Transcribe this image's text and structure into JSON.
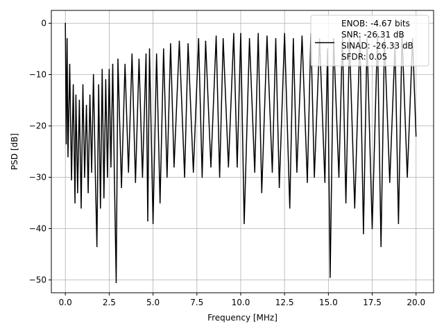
{
  "chart_data": {
    "type": "line",
    "xlabel": "Frequency [MHz]",
    "ylabel": "PSD [dB]",
    "xlim": [
      -0.8,
      21.0
    ],
    "ylim": [
      -52.5,
      2.5
    ],
    "x_ticks": [
      0.0,
      2.5,
      5.0,
      7.5,
      10.0,
      12.5,
      15.0,
      17.5,
      20.0
    ],
    "x_tick_labels": [
      "0.0",
      "2.5",
      "5.0",
      "7.5",
      "10.0",
      "12.5",
      "15.0",
      "17.5",
      "20.0"
    ],
    "y_ticks": [
      0,
      -10,
      -20,
      -30,
      -40,
      -50
    ],
    "y_tick_labels": [
      "0",
      "−10",
      "−20",
      "−30",
      "−40",
      "−50"
    ],
    "grid": true,
    "legend_position": "top-right",
    "series": [
      {
        "name": "ENOB: -4.67 bits\nSNR: -26.31 dB\nSINAD: -26.33 dB\nSFDR: 0.05",
        "color": "#000000",
        "x": [
          0.0,
          0.05,
          0.1,
          0.15,
          0.25,
          0.35,
          0.45,
          0.55,
          0.6,
          0.7,
          0.8,
          0.9,
          1.0,
          1.1,
          1.2,
          1.3,
          1.4,
          1.5,
          1.6,
          1.7,
          1.8,
          1.9,
          2.0,
          2.1,
          2.2,
          2.3,
          2.4,
          2.5,
          2.6,
          2.7,
          2.8,
          2.9,
          3.0,
          3.2,
          3.4,
          3.6,
          3.8,
          4.0,
          4.2,
          4.4,
          4.6,
          4.7,
          4.8,
          5.0,
          5.2,
          5.4,
          5.6,
          5.8,
          6.0,
          6.2,
          6.5,
          6.8,
          7.0,
          7.3,
          7.6,
          7.8,
          8.0,
          8.3,
          8.6,
          8.8,
          9.0,
          9.3,
          9.6,
          9.8,
          10.0,
          10.2,
          10.5,
          10.8,
          11.0,
          11.2,
          11.5,
          11.8,
          12.0,
          12.2,
          12.5,
          12.8,
          13.0,
          13.2,
          13.5,
          13.8,
          14.0,
          14.2,
          14.5,
          14.8,
          14.95,
          15.1,
          15.3,
          15.6,
          15.8,
          16.0,
          16.2,
          16.5,
          16.8,
          17.0,
          17.2,
          17.5,
          17.8,
          18.0,
          18.2,
          18.5,
          18.8,
          19.0,
          19.2,
          19.5,
          19.8,
          20.0
        ],
        "y": [
          0.0,
          -23.5,
          -3.0,
          -26.0,
          -8.0,
          -30.5,
          -12.0,
          -35.0,
          -14.0,
          -33.0,
          -15.0,
          -36.0,
          -12.0,
          -30.0,
          -16.0,
          -33.0,
          -14.0,
          -29.0,
          -10.0,
          -28.0,
          -43.5,
          -12.0,
          -36.0,
          -9.0,
          -34.0,
          -11.0,
          -30.0,
          -9.0,
          -28.0,
          -8.0,
          -31.0,
          -50.5,
          -7.0,
          -32.0,
          -8.0,
          -29.0,
          -6.0,
          -31.0,
          -7.0,
          -30.0,
          -6.0,
          -38.5,
          -5.0,
          -39.0,
          -6.0,
          -35.0,
          -5.0,
          -30.0,
          -4.0,
          -28.0,
          -3.5,
          -30.0,
          -4.0,
          -29.0,
          -3.0,
          -30.0,
          -3.5,
          -28.0,
          -2.5,
          -30.0,
          -3.0,
          -28.0,
          -2.0,
          -28.0,
          -2.0,
          -39.0,
          -3.0,
          -29.0,
          -2.0,
          -33.0,
          -2.5,
          -29.0,
          -3.0,
          -32.0,
          -2.0,
          -36.0,
          -3.0,
          -29.0,
          -2.5,
          -31.0,
          -2.0,
          -30.0,
          -3.0,
          -31.0,
          -5.0,
          -49.5,
          -3.0,
          -30.0,
          -2.5,
          -35.0,
          -3.0,
          -36.0,
          -2.5,
          -41.0,
          -3.0,
          -40.0,
          -2.0,
          -43.5,
          -3.0,
          -31.0,
          -4.0,
          -39.0,
          -2.0,
          -30.0,
          -3.0,
          -22.0
        ]
      }
    ]
  }
}
